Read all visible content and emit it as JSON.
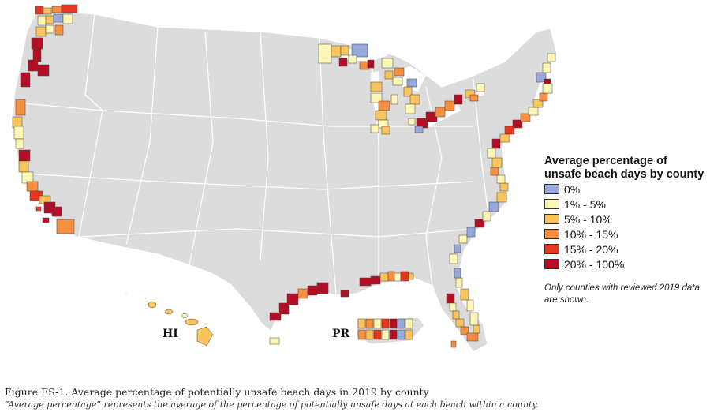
{
  "map": {
    "legend": {
      "title": "Average percentage of unsafe beach days by county",
      "items": [
        {
          "label": "0%",
          "color": "#97a9dc"
        },
        {
          "label": "1% - 5%",
          "color": "#fdf6b5"
        },
        {
          "label": "5% - 10%",
          "color": "#f9c45d"
        },
        {
          "label": "10% - 15%",
          "color": "#f68f3f"
        },
        {
          "label": "15% - 20%",
          "color": "#e6371f"
        },
        {
          "label": "20% - 100%",
          "color": "#b20f27"
        }
      ],
      "note": "Only counties with reviewed 2019 data are shown."
    },
    "territory_labels": {
      "hawaii": "HI",
      "puerto_rico": "PR"
    },
    "base_color": "#dcdcdc"
  },
  "caption": {
    "title": "Figure ES-1. Average percentage of potentially unsafe beach days in 2019 by county",
    "subtitle": "“Average percentage” represents the average of the percentage of potentially unsafe days at each beach within a county."
  }
}
